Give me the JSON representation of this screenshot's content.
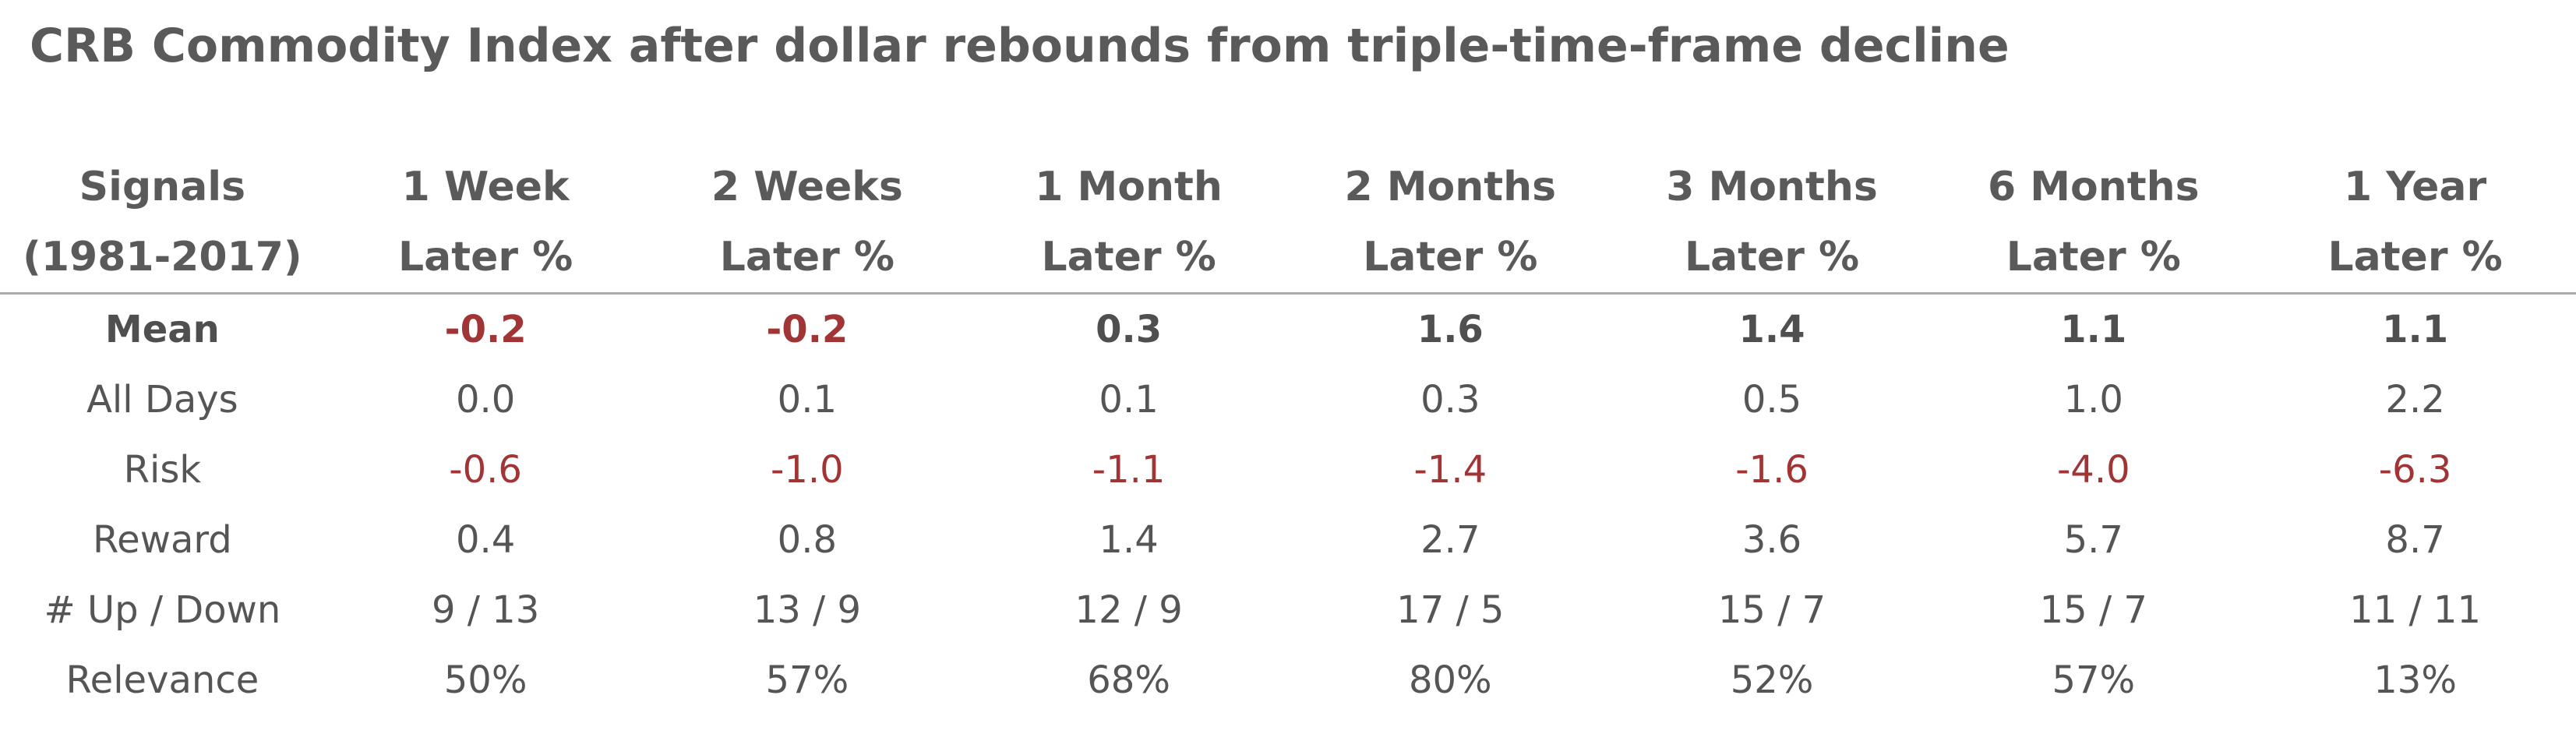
{
  "chart_data": {
    "type": "table",
    "title": "CRB Commodity Index after dollar rebounds from triple-time-frame decline",
    "header": [
      [
        "Signals",
        "(1981-2017)"
      ],
      [
        "1 Week",
        "Later %"
      ],
      [
        "2 Weeks",
        "Later %"
      ],
      [
        "1 Month",
        "Later %"
      ],
      [
        "2 Months",
        "Later %"
      ],
      [
        "3 Months",
        "Later %"
      ],
      [
        "6 Months",
        "Later %"
      ],
      [
        "1 Year",
        "Later %"
      ]
    ],
    "rows": [
      {
        "label": "Mean",
        "values": [
          "-0.2",
          "-0.2",
          "0.3",
          "1.6",
          "1.4",
          "1.1",
          "1.1"
        ]
      },
      {
        "label": "All Days",
        "values": [
          "0.0",
          "0.1",
          "0.1",
          "0.3",
          "0.5",
          "1.0",
          "2.2"
        ]
      },
      {
        "label": "Risk",
        "values": [
          "-0.6",
          "-1.0",
          "-1.1",
          "-1.4",
          "-1.6",
          "-4.0",
          "-6.3"
        ]
      },
      {
        "label": "Reward",
        "values": [
          "0.4",
          "0.8",
          "1.4",
          "2.7",
          "3.6",
          "5.7",
          "8.7"
        ]
      },
      {
        "label": "# Up / Down",
        "values": [
          "9 / 13",
          "13 / 9",
          "12 / 9",
          "17 / 5",
          "15 / 7",
          "15 / 7",
          "11 / 11"
        ]
      },
      {
        "label": "Relevance",
        "values": [
          "50%",
          "57%",
          "68%",
          "80%",
          "52%",
          "57%",
          "13%"
        ]
      }
    ],
    "colors": {
      "negative": "#a13535",
      "text": "#555555",
      "header": "#5a5a5a",
      "rule": "#aaaaaa"
    }
  }
}
